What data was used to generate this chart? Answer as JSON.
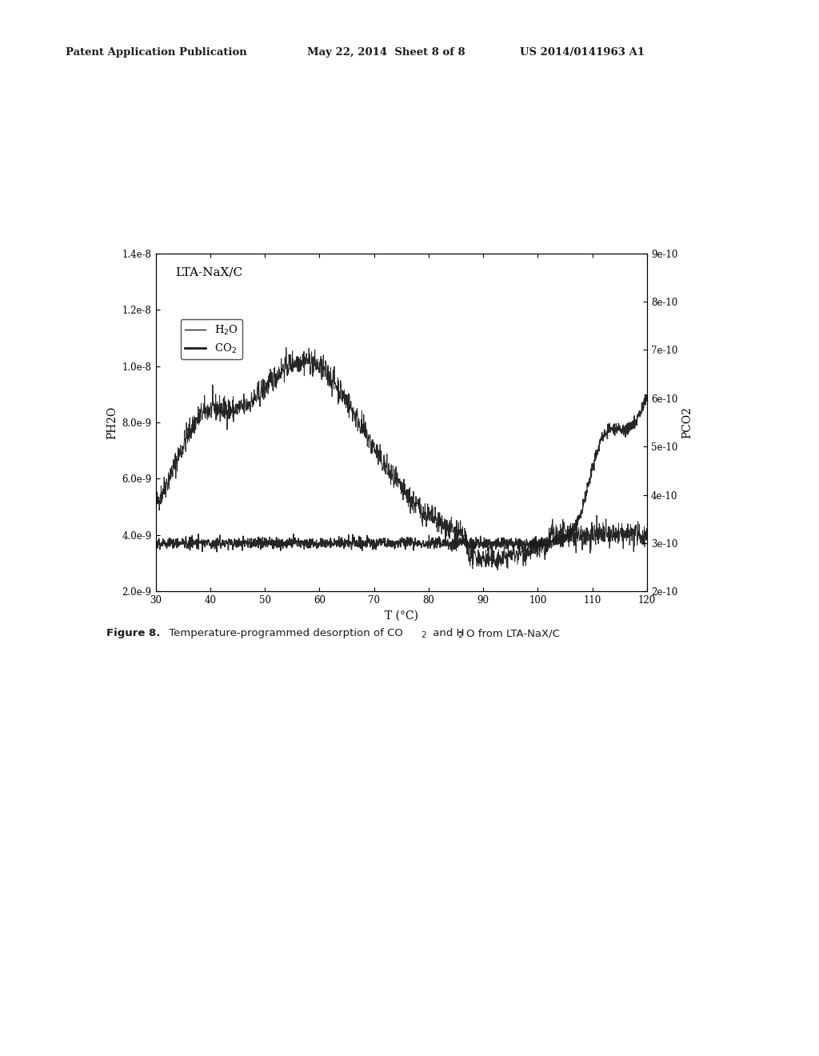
{
  "title_header_left": "Patent Application Publication",
  "title_header_mid": "May 22, 2014  Sheet 8 of 8",
  "title_header_right": "US 2014/0141963 A1",
  "chart_title": "LTA-NaX/C",
  "xlabel": "T (°C)",
  "ylabel_left": "PH2O",
  "ylabel_right": "PCO2",
  "xlim": [
    30,
    120
  ],
  "ylim_left": [
    2e-09,
    1.4e-08
  ],
  "ylim_right": [
    2e-10,
    9e-10
  ],
  "yticks_left": [
    2e-09,
    4e-09,
    6e-09,
    8e-09,
    1e-08,
    1.2e-08,
    1.4e-08
  ],
  "ytick_labels_left": [
    "2.0e-9",
    "4.0e-9",
    "6.0e-9",
    "8.0e-9",
    "1.0e-8",
    "1.2e-8",
    "1.4e-8"
  ],
  "yticks_right": [
    2e-10,
    3e-10,
    4e-10,
    5e-10,
    6e-10,
    7e-10,
    8e-10,
    9e-10
  ],
  "ytick_labels_right": [
    "2e-10",
    "3e-10",
    "4e-10",
    "5e-10",
    "6e-10",
    "7e-10",
    "8e-10",
    "9e-10"
  ],
  "xticks": [
    30,
    40,
    50,
    60,
    70,
    80,
    90,
    100,
    110,
    120
  ],
  "background_color": "#ffffff",
  "line_color": "#1a1a1a"
}
